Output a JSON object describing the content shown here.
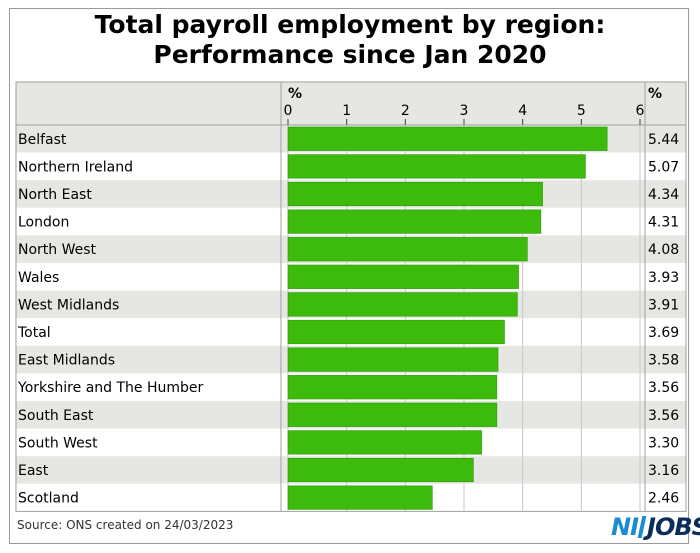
{
  "title_lines": [
    "Total payroll employment by region:",
    "Performance since Jan 2020"
  ],
  "footer": {
    "source": "Source: ONS created on 24/03/2023"
  },
  "brand": {
    "left": "NI",
    "right": "JOBS"
  },
  "colors": {
    "bar": "#3cbb0d",
    "bar_stroke": "#2f9a08",
    "band": "#e6e6e2",
    "grid": "#a0a0a0"
  },
  "chart_data": {
    "type": "bar",
    "orientation": "horizontal",
    "title": "Total payroll employment by region: Performance since Jan 2020",
    "axis_unit": "%",
    "value_column_header": "%",
    "xlim": [
      0,
      6
    ],
    "ticks": [
      0,
      1,
      2,
      3,
      4,
      5,
      6
    ],
    "categories": [
      "Belfast",
      "Northern Ireland",
      "North East",
      "London",
      "North West",
      "Wales",
      "West Midlands",
      "Total",
      "East Midlands",
      "Yorkshire and The Humber",
      "South East",
      "South West",
      " East",
      "Scotland"
    ],
    "values": [
      5.44,
      5.07,
      4.34,
      4.31,
      4.08,
      3.93,
      3.91,
      3.69,
      3.58,
      3.56,
      3.56,
      3.3,
      3.16,
      2.46
    ],
    "value_labels": [
      "5.44",
      "5.07",
      "4.34",
      "4.31",
      "4.08",
      "3.93",
      "3.91",
      "3.69",
      "3.58",
      "3.56",
      "3.56",
      "3.30",
      "3.16",
      "2.46"
    ],
    "grid": true,
    "alternating_row_bands": true
  }
}
